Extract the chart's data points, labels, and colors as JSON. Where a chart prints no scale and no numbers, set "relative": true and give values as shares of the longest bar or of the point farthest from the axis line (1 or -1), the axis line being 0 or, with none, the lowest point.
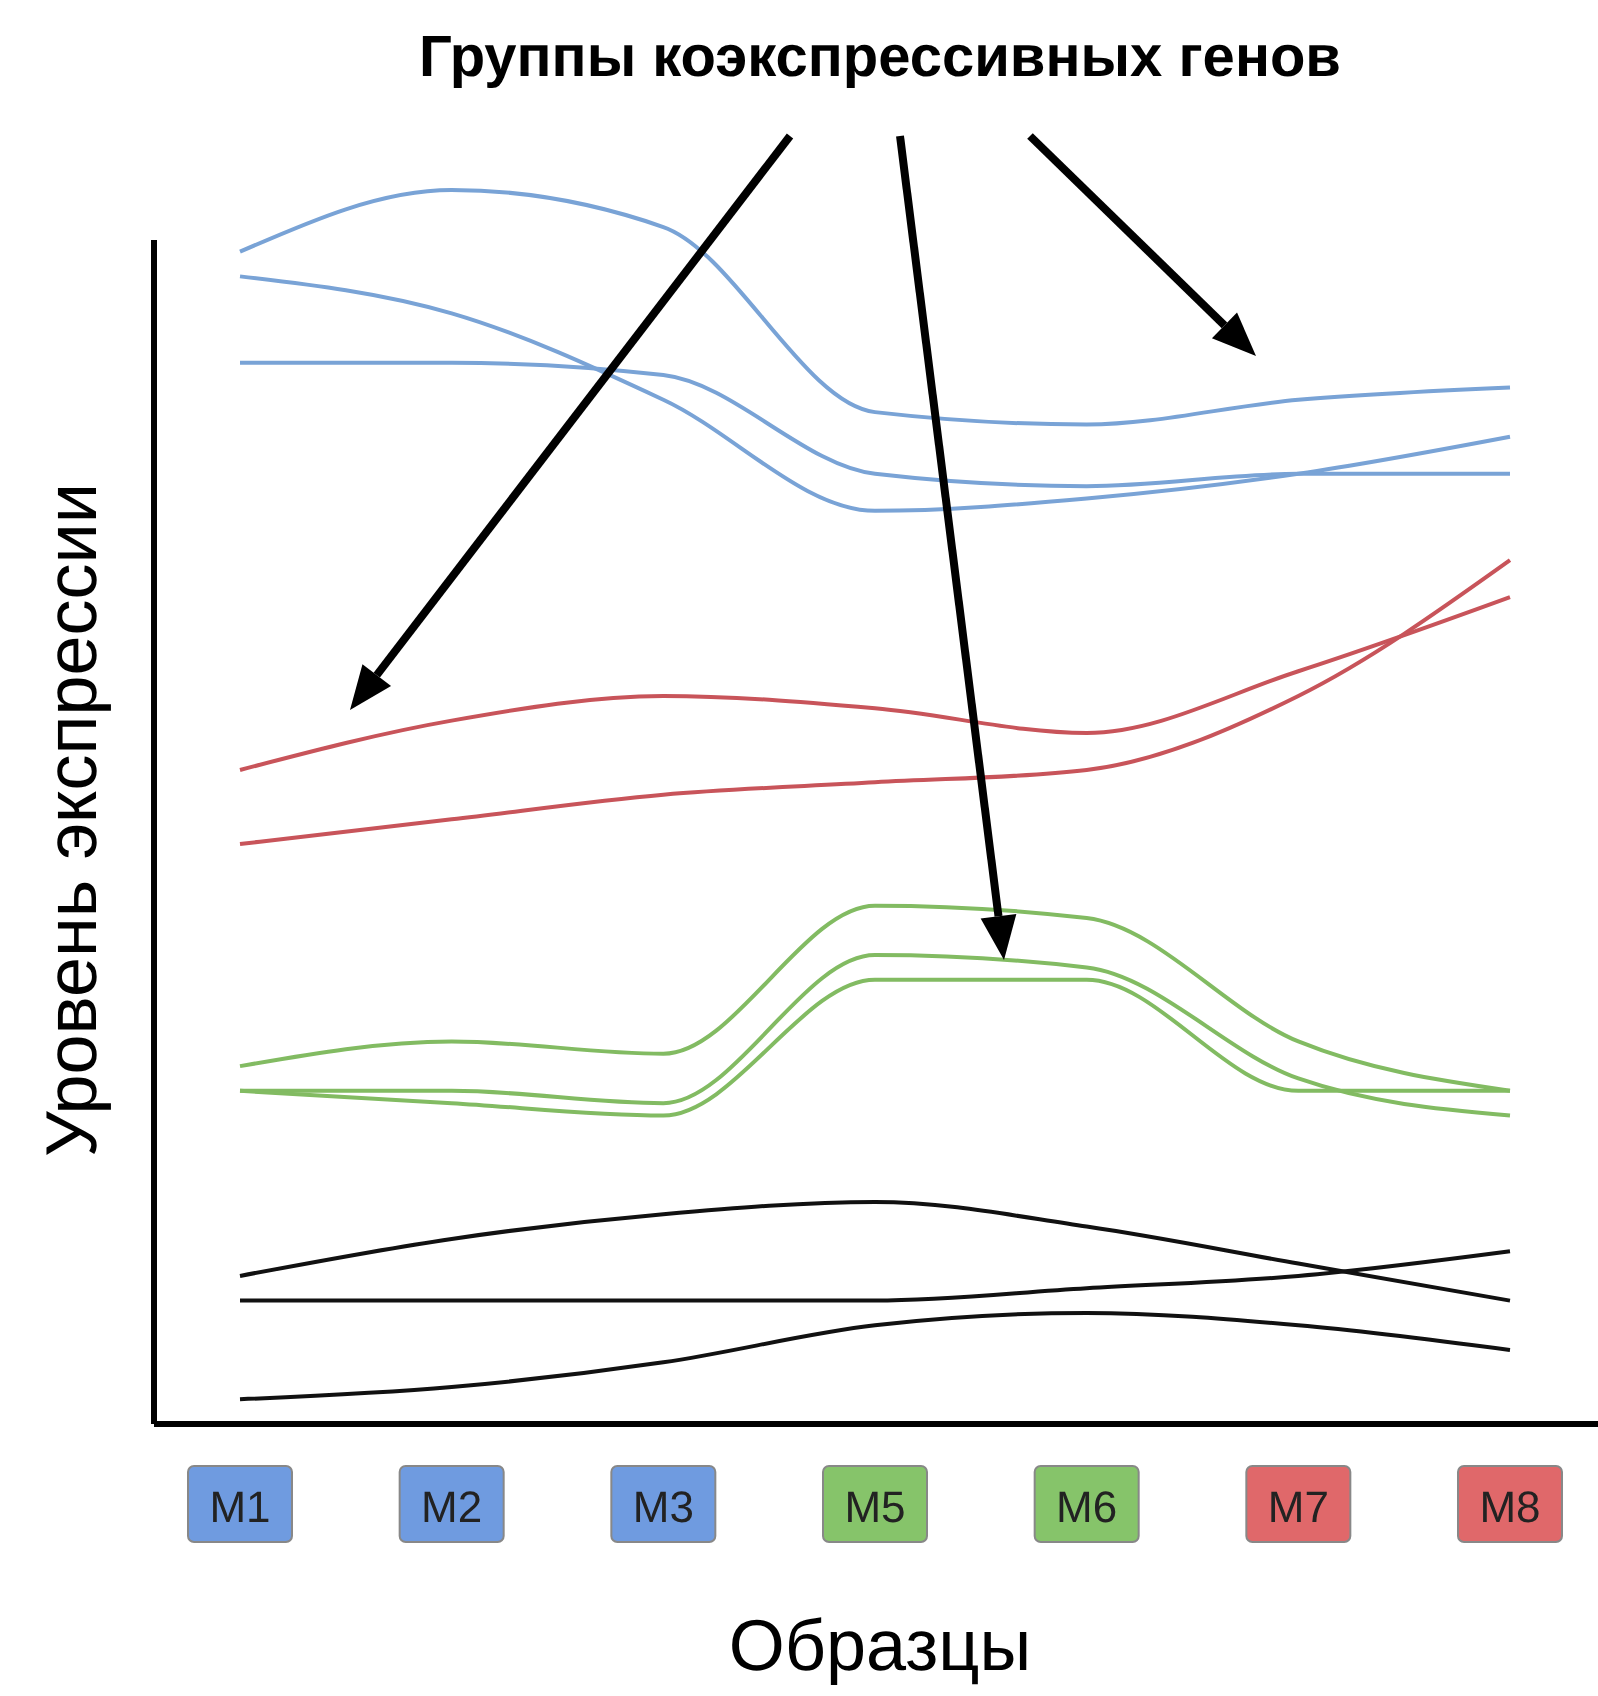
{
  "chart_data": {
    "type": "line",
    "title": "Группы коэкспрессивных генов",
    "xlabel": "Образцы",
    "ylabel": "Уровень экспрессии",
    "relative": true,
    "categories": [
      "M1",
      "M2",
      "M3",
      "M5",
      "M6",
      "M7",
      "M8"
    ],
    "colors": [
      "#6f9be0",
      "#6f9be0",
      "#6f9be0",
      "#86c46a",
      "#86c46a",
      "#e0686a",
      "#e0686a"
    ],
    "marker": "none",
    "line_style": "solid",
    "series": [
      {
        "color": "#79a3d6",
        "values": [
          0.95,
          1,
          0.97,
          0.82,
          0.81,
          0.83,
          0.84
        ]
      },
      {
        "color": "#79a3d6",
        "values": [
          0.93,
          0.9,
          0.83,
          0.74,
          0.75,
          0.77,
          0.8
        ]
      },
      {
        "color": "#79a3d6",
        "values": [
          0.86,
          0.86,
          0.85,
          0.77,
          0.76,
          0.77,
          0.77
        ]
      },
      {
        "color": "#c8545a",
        "values": [
          0.53,
          0.57,
          0.59,
          0.58,
          0.56,
          0.61,
          0.67
        ]
      },
      {
        "color": "#c8545a",
        "values": [
          0.47,
          0.49,
          0.51,
          0.52,
          0.53,
          0.59,
          0.7
        ]
      },
      {
        "color": "#82bb62",
        "values": [
          0.29,
          0.31,
          0.3,
          0.42,
          0.41,
          0.31,
          0.27
        ]
      },
      {
        "color": "#82bb62",
        "values": [
          0.27,
          0.27,
          0.26,
          0.38,
          0.37,
          0.28,
          0.25
        ]
      },
      {
        "color": "#82bb62",
        "values": [
          0.27,
          0.26,
          0.25,
          0.36,
          0.36,
          0.27,
          0.27
        ]
      },
      {
        "color": "#111111",
        "values": [
          0.12,
          0.15,
          0.17,
          0.18,
          0.16,
          0.13,
          0.1
        ]
      },
      {
        "color": "#111111",
        "values": [
          0.1,
          0.1,
          0.1,
          0.1,
          0.11,
          0.12,
          0.14
        ]
      },
      {
        "color": "#111111",
        "values": [
          0.02,
          0.03,
          0.05,
          0.08,
          0.09,
          0.08,
          0.06
        ]
      }
    ]
  }
}
